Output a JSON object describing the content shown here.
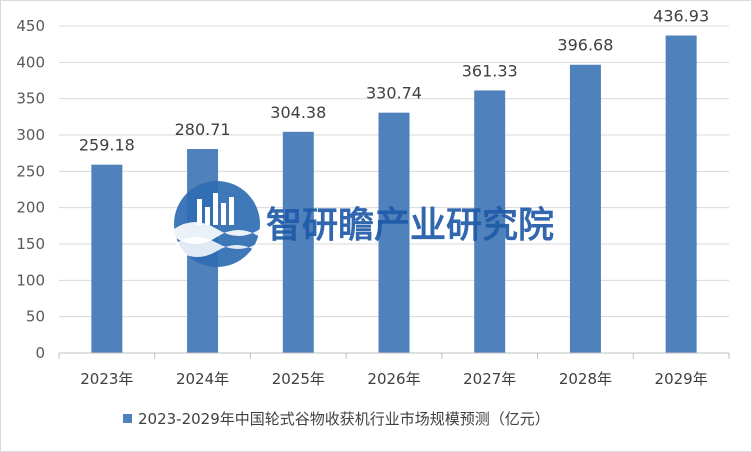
{
  "chart_data": {
    "type": "bar",
    "categories": [
      "2023年",
      "2024年",
      "2025年",
      "2026年",
      "2027年",
      "2028年",
      "2029年"
    ],
    "series": [
      {
        "name": "2023-2029年中国轮式谷物收获机行业市场规模预测（亿元）",
        "values": [
          259.18,
          280.71,
          304.38,
          330.74,
          361.33,
          396.68,
          436.93
        ],
        "labels": [
          "259.18",
          "280.71",
          "304.38",
          "330.74",
          "361.33",
          "396.68",
          "436.93"
        ],
        "color": "#4f81bd"
      }
    ],
    "yticks": [
      0,
      50,
      100,
      150,
      200,
      250,
      300,
      350,
      400,
      450
    ],
    "ylim": [
      0,
      450
    ],
    "grid": "horizontal",
    "legend": "bottom"
  },
  "watermark": {
    "text": "智研瞻产业研究院",
    "icon": "institute-logo-icon",
    "color": "#1f5ba8"
  }
}
